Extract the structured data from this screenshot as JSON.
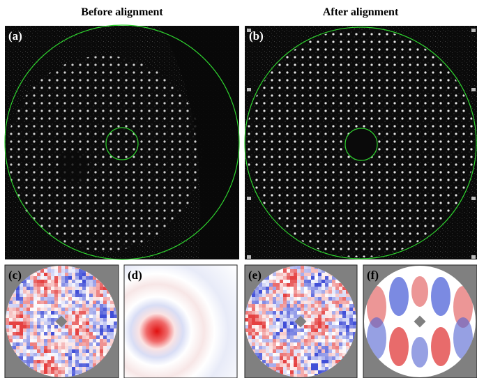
{
  "titles": [
    "Before alignment",
    "After alignment"
  ],
  "panels": [
    {
      "label": "(a)"
    },
    {
      "label": "(b)"
    },
    {
      "label": "(c)"
    },
    {
      "label": "(d)"
    },
    {
      "label": "(e)"
    },
    {
      "label": "(f)"
    }
  ]
}
